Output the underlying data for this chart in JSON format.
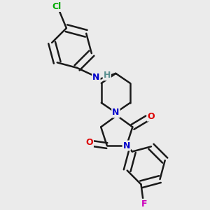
{
  "background_color": "#ebebeb",
  "bond_color": "#1a1a1a",
  "bond_width": 1.8,
  "atom_colors": {
    "N_blue": "#0000cc",
    "N_teal": "#5a9090",
    "O": "#dd0000",
    "Cl": "#00aa00",
    "F": "#cc00bb",
    "H": "#5a9090"
  },
  "figsize": [
    3.0,
    3.0
  ],
  "dpi": 100,
  "xlim": [
    0,
    10
  ],
  "ylim": [
    0,
    10
  ]
}
